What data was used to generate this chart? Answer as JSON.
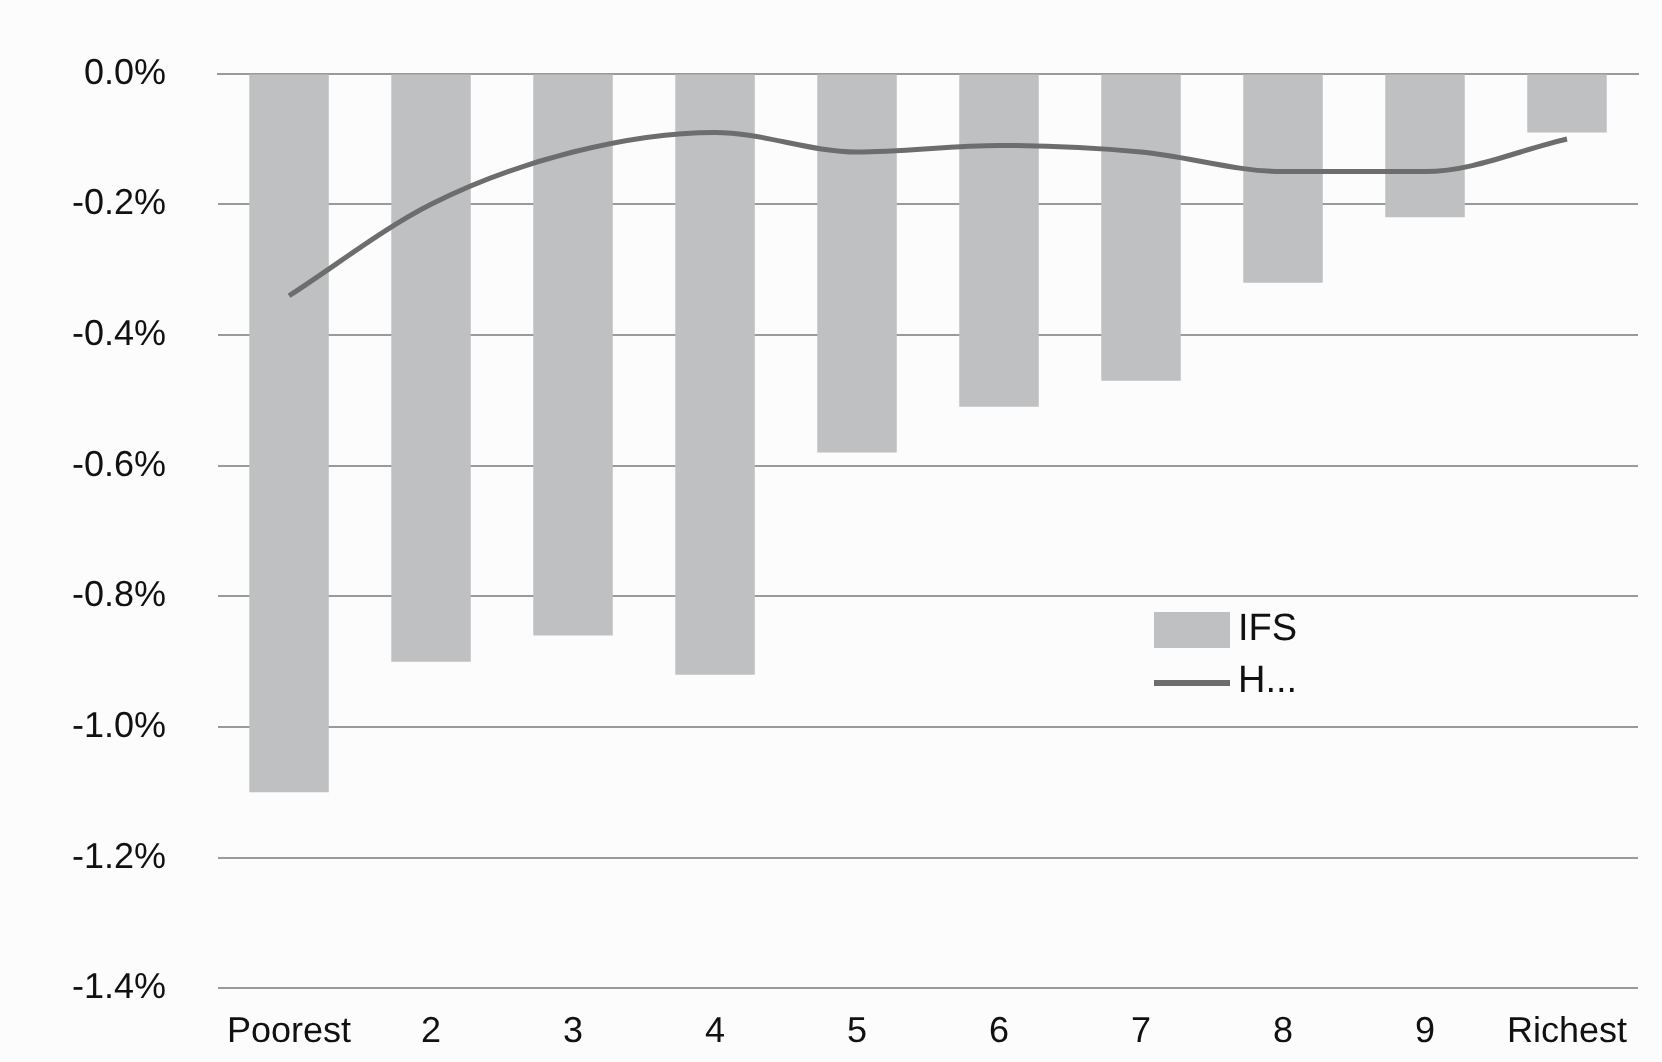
{
  "chart_data": {
    "type": "bar",
    "categories": [
      "Poorest",
      "2",
      "3",
      "4",
      "5",
      "6",
      "7",
      "8",
      "9",
      "Richest"
    ],
    "series": [
      {
        "name": "IFS",
        "type": "bar",
        "color": "#bfc0c2",
        "values": [
          -1.1,
          -0.9,
          -0.86,
          -0.92,
          -0.58,
          -0.51,
          -0.47,
          -0.32,
          -0.22,
          -0.09
        ]
      },
      {
        "name": "H...",
        "type": "line",
        "color": "#6d6d6d",
        "values": [
          -0.34,
          -0.2,
          -0.12,
          -0.09,
          -0.12,
          -0.11,
          -0.12,
          -0.15,
          -0.15,
          -0.1
        ]
      }
    ],
    "ylim": [
      -1.4,
      0
    ],
    "yticks": [
      {
        "value": 0,
        "label": "0.0%"
      },
      {
        "value": -0.2,
        "label": "-0.2%"
      },
      {
        "value": -0.4,
        "label": "-0.4%"
      },
      {
        "value": -0.6,
        "label": "-0.6%"
      },
      {
        "value": -0.8,
        "label": "-0.8%"
      },
      {
        "value": -1.0,
        "label": "-1.0%"
      },
      {
        "value": -1.2,
        "label": "-1.2%"
      },
      {
        "value": -1.4,
        "label": "-1.4%"
      }
    ],
    "grid": "y",
    "legend": "right",
    "marker": "none"
  }
}
